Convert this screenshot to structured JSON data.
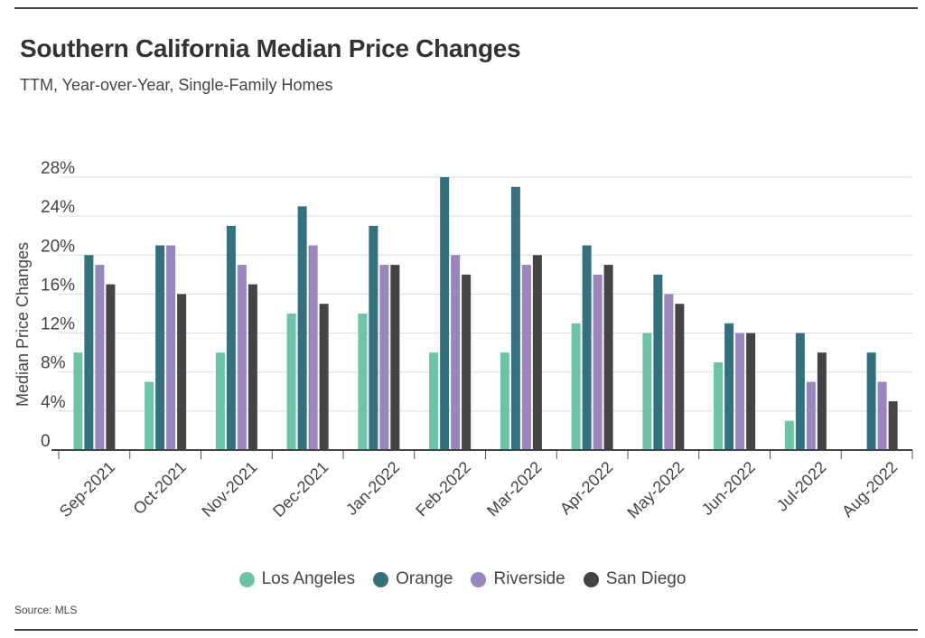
{
  "title": "Southern California Median Price Changes",
  "subtitle": "TTM, Year-over-Year, Single-Family Homes",
  "source": "Source: MLS",
  "chart_data": {
    "type": "bar",
    "ylabel": "Median Price Changes",
    "xlabel": "",
    "ylim": [
      0,
      28
    ],
    "yticks": [
      0,
      4,
      8,
      12,
      16,
      20,
      24,
      28
    ],
    "ytick_labels": [
      "0",
      "4%",
      "8%",
      "12%",
      "16%",
      "20%",
      "24%",
      "28%"
    ],
    "grid": true,
    "legend_position": "bottom",
    "categories": [
      "Sep-2021",
      "Oct-2021",
      "Nov-2021",
      "Dec-2021",
      "Jan-2022",
      "Feb-2022",
      "Mar-2022",
      "Apr-2022",
      "May-2022",
      "Jun-2022",
      "Jul-2022",
      "Aug-2022"
    ],
    "series": [
      {
        "name": "Los Angeles",
        "color": "#6cc4a8",
        "values": [
          10,
          7,
          10,
          14,
          14,
          10,
          10,
          13,
          12,
          9,
          3,
          0
        ]
      },
      {
        "name": "Orange",
        "color": "#33717f",
        "values": [
          20,
          21,
          23,
          25,
          23,
          28,
          27,
          21,
          18,
          13,
          12,
          10
        ]
      },
      {
        "name": "Riverside",
        "color": "#9b85bf",
        "values": [
          19,
          21,
          19,
          21,
          19,
          20,
          19,
          18,
          16,
          12,
          7,
          7
        ]
      },
      {
        "name": "San Diego",
        "color": "#444444",
        "values": [
          17,
          16,
          17,
          15,
          19,
          18,
          20,
          19,
          15,
          12,
          10,
          5
        ]
      }
    ]
  }
}
